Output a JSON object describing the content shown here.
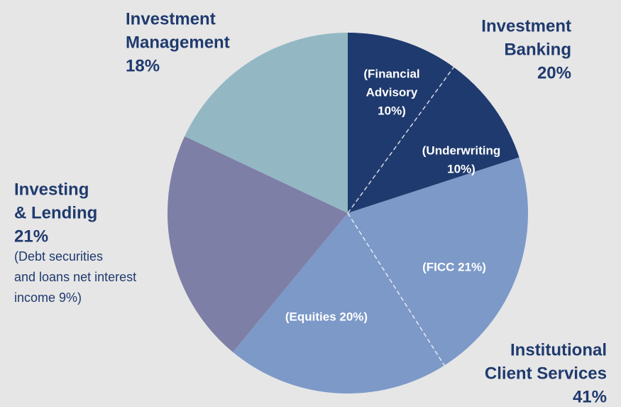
{
  "chart_data": {
    "type": "pie",
    "groups": [
      {
        "name": [
          "Investment",
          "Banking"
        ],
        "value": 20,
        "value_label": "20%",
        "color": "#1f3a6e",
        "segments": [
          {
            "label": [
              "(Financial",
              "Advisory",
              "10%)"
            ],
            "value": 10
          },
          {
            "label": [
              "(Underwriting",
              "10%)"
            ],
            "value": 10
          }
        ]
      },
      {
        "name": [
          "Institutional",
          "Client Services"
        ],
        "value": 41,
        "value_label": "41%",
        "color": "#7c99c8",
        "segments": [
          {
            "label": [
              "(FICC 21%)"
            ],
            "value": 21
          },
          {
            "label": [
              "(Equities 20%)"
            ],
            "value": 20
          }
        ]
      },
      {
        "name": [
          "Investing",
          "& Lending"
        ],
        "value": 21,
        "value_label": "21%",
        "color": "#7e7fa6",
        "note": [
          "(Debt securities",
          "and loans net interest",
          "income 9%)"
        ]
      },
      {
        "name": [
          "Investment",
          "Management"
        ],
        "value": 18,
        "value_label": "18%",
        "color": "#93b8c4"
      }
    ]
  }
}
